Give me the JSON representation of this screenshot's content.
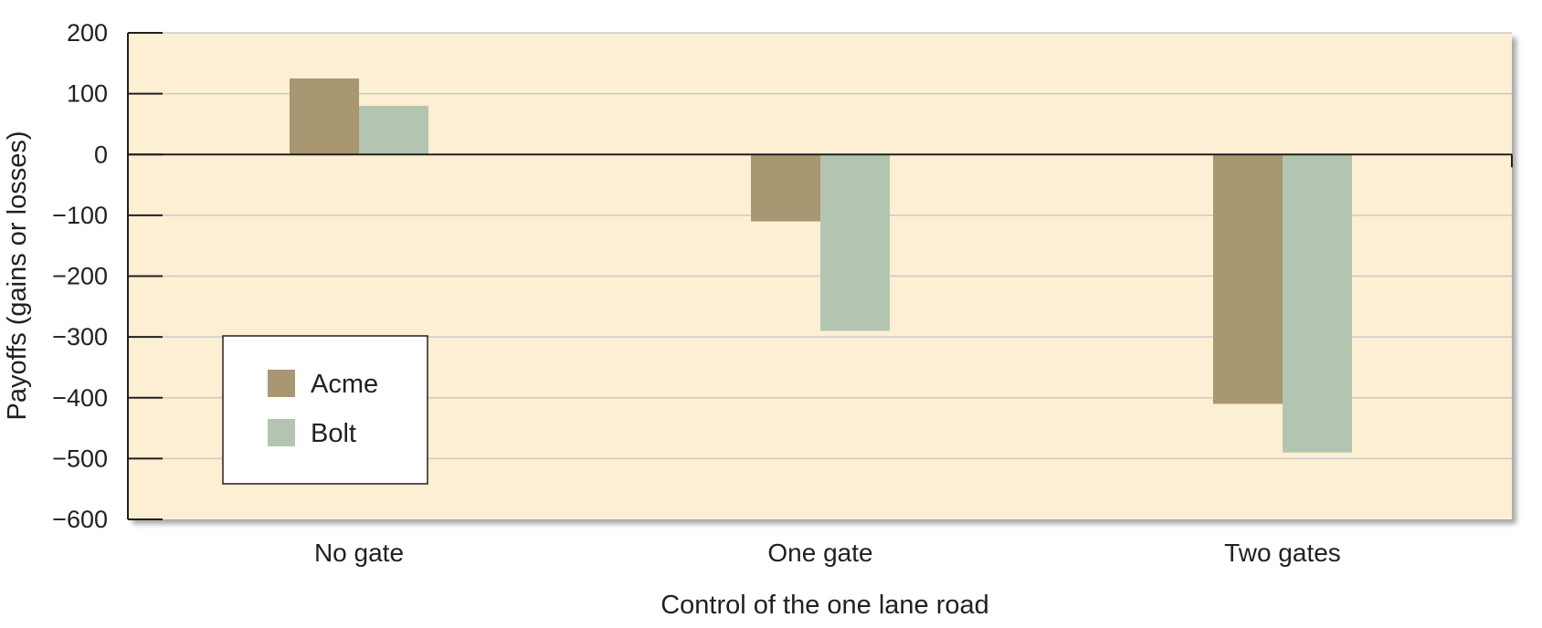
{
  "chart_data": {
    "type": "bar",
    "title": "",
    "xlabel": "Control of the one lane road",
    "ylabel": "Payoffs (gains or losses)",
    "ylim": [
      -600,
      200
    ],
    "yticks": [
      200,
      100,
      0,
      -100,
      -200,
      -300,
      -400,
      -500,
      -600
    ],
    "ytick_labels": [
      "200",
      "100",
      "0",
      "−100",
      "−200",
      "−300",
      "−400",
      "−500",
      "−600"
    ],
    "categories": [
      "No gate",
      "One gate",
      "Two gates"
    ],
    "series": [
      {
        "name": "Acme",
        "values": [
          125,
          -110,
          -410
        ],
        "color": "#a89770"
      },
      {
        "name": "Bolt",
        "values": [
          80,
          -290,
          -490
        ],
        "color": "#b3c5b1"
      }
    ],
    "grid": true,
    "legend_position": "bottom-left",
    "plot_background": "#fdefd3",
    "gridline_color": "#c9c9c9"
  }
}
